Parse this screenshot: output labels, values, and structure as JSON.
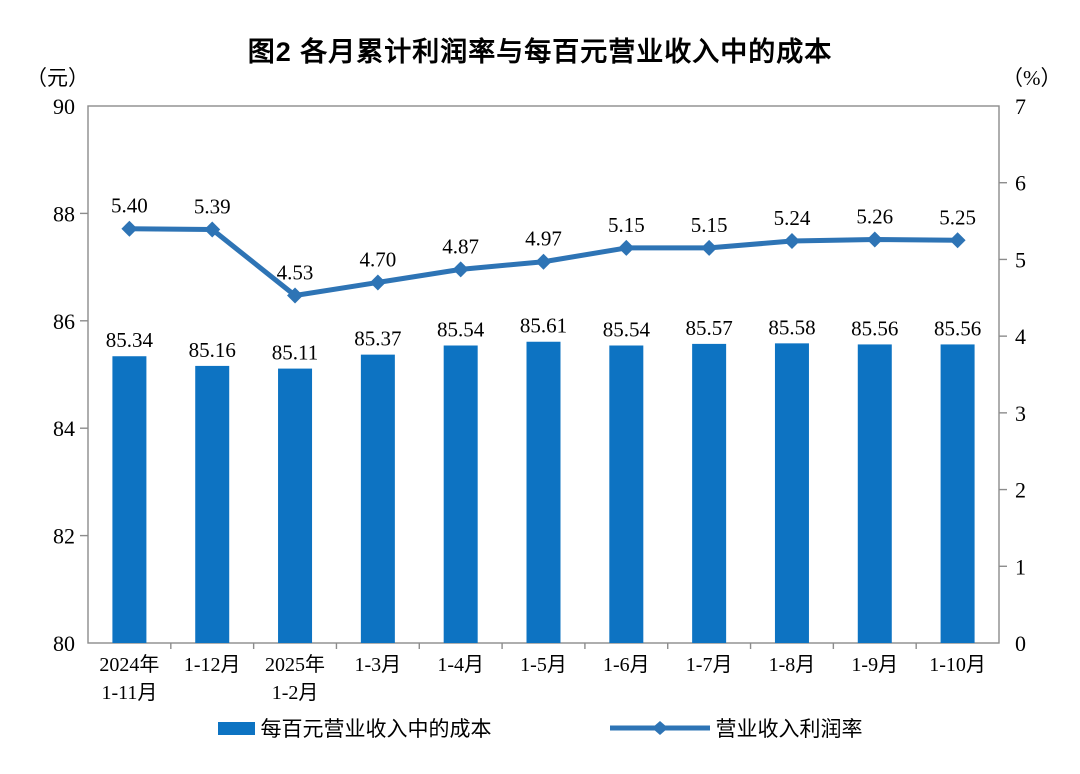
{
  "chart_data": {
    "type": "combo",
    "title": "图2 各月累计利润率与每百元营业收入中的成本",
    "categories": [
      [
        "2024年",
        "1-11月"
      ],
      [
        "1-12月"
      ],
      [
        "2025年",
        "1-2月"
      ],
      [
        "1-3月"
      ],
      [
        "1-4月"
      ],
      [
        "1-5月"
      ],
      [
        "1-6月"
      ],
      [
        "1-7月"
      ],
      [
        "1-8月"
      ],
      [
        "1-9月"
      ],
      [
        "1-10月"
      ]
    ],
    "series": [
      {
        "name": "每百元营业收入中的成本",
        "type": "bar",
        "axis": "left",
        "color": "#0D73C2",
        "values": [
          85.34,
          85.16,
          85.11,
          85.37,
          85.54,
          85.61,
          85.54,
          85.57,
          85.58,
          85.56,
          85.56
        ],
        "labels": [
          "85.34",
          "85.16",
          "85.11",
          "85.37",
          "85.54",
          "85.61",
          "85.54",
          "85.57",
          "85.58",
          "85.56",
          "85.56"
        ]
      },
      {
        "name": "营业收入利润率",
        "type": "line",
        "axis": "right",
        "color": "#2E74B5",
        "values": [
          5.4,
          5.39,
          4.53,
          4.7,
          4.87,
          4.97,
          5.15,
          5.15,
          5.24,
          5.26,
          5.25
        ],
        "labels": [
          "5.40",
          "5.39",
          "4.53",
          "4.70",
          "4.87",
          "4.97",
          "5.15",
          "5.15",
          "5.24",
          "5.26",
          "5.25"
        ]
      }
    ],
    "left_axis": {
      "unit": "（元）",
      "min": 80,
      "max": 90,
      "tick_values": [
        80,
        82,
        84,
        86,
        88,
        90
      ],
      "tick_labels": [
        "80",
        "82",
        "84",
        "86",
        "88",
        "90"
      ]
    },
    "right_axis": {
      "unit": "（%）",
      "min": 0,
      "max": 7,
      "tick_values": [
        0,
        1,
        2,
        3,
        4,
        5,
        6,
        7
      ],
      "tick_labels": [
        "0",
        "1",
        "2",
        "3",
        "4",
        "5",
        "6",
        "7"
      ]
    },
    "grid": false,
    "legend_position": "bottom",
    "border_color": "#8c8c8c"
  }
}
